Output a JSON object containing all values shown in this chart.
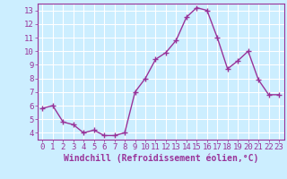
{
  "x": [
    0,
    1,
    2,
    3,
    4,
    5,
    6,
    7,
    8,
    9,
    10,
    11,
    12,
    13,
    14,
    15,
    16,
    17,
    18,
    19,
    20,
    21,
    22,
    23
  ],
  "y": [
    5.8,
    6.0,
    4.8,
    4.6,
    4.0,
    4.2,
    3.8,
    3.8,
    4.0,
    7.0,
    8.0,
    9.4,
    9.9,
    10.8,
    12.5,
    13.2,
    13.0,
    11.0,
    8.7,
    9.3,
    10.0,
    7.9,
    6.8,
    6.8
  ],
  "line_color": "#993399",
  "marker": "+",
  "marker_size": 4,
  "marker_linewidth": 1.0,
  "line_width": 1.0,
  "background_color": "#cceeff",
  "grid_color": "#ffffff",
  "axis_color": "#993399",
  "xlabel": "Windchill (Refroidissement éolien,°C)",
  "xlabel_fontsize": 7,
  "tick_fontsize": 6.5,
  "ylim": [
    3.5,
    13.5
  ],
  "xlim": [
    -0.5,
    23.5
  ],
  "yticks": [
    4,
    5,
    6,
    7,
    8,
    9,
    10,
    11,
    12,
    13
  ],
  "xticks": [
    0,
    1,
    2,
    3,
    4,
    5,
    6,
    7,
    8,
    9,
    10,
    11,
    12,
    13,
    14,
    15,
    16,
    17,
    18,
    19,
    20,
    21,
    22,
    23
  ]
}
